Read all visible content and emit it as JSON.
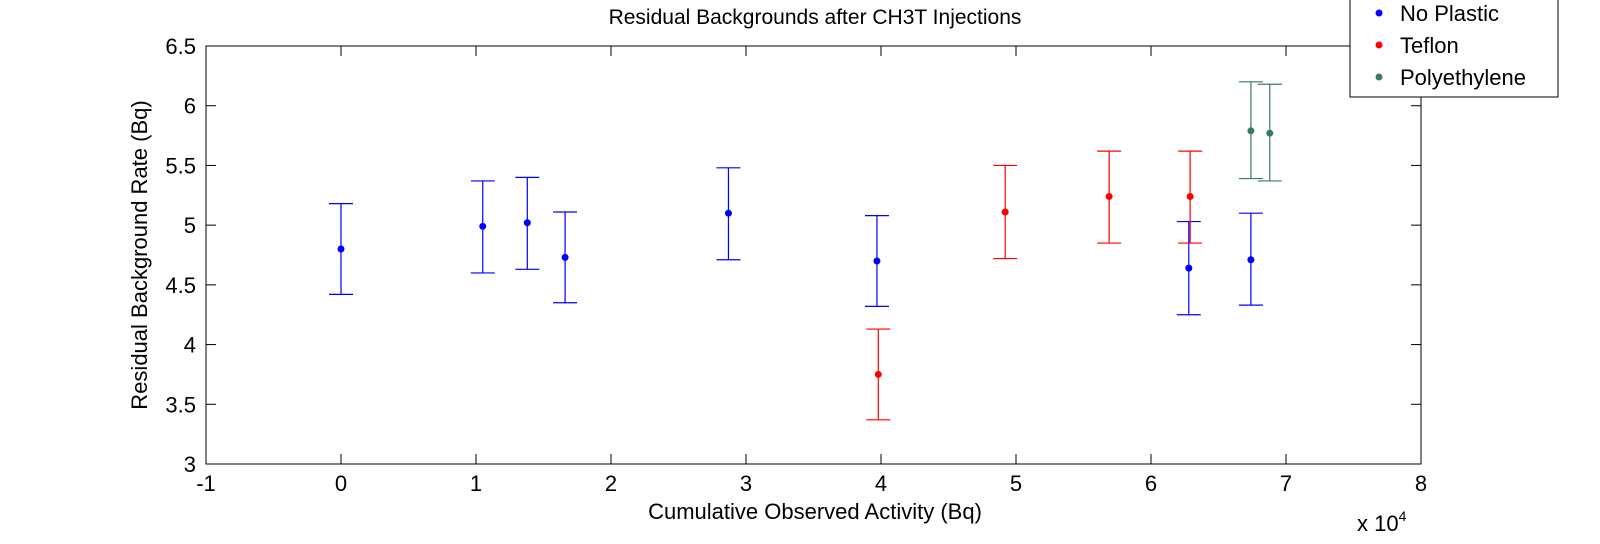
{
  "chart_data": {
    "type": "scatter",
    "title": "Residual Backgrounds after CH3T Injections",
    "xlabel": "Cumulative Observed Activity (Bq)",
    "ylabel": "Residual Background Rate (Bq)",
    "x_multiplier_label": "x 10",
    "x_multiplier_exponent": "4",
    "x_scale": 10000,
    "xlim": [
      -1,
      8
    ],
    "ylim": [
      3,
      6.5
    ],
    "x_ticks": [
      -1,
      0,
      1,
      2,
      3,
      4,
      5,
      6,
      7,
      8
    ],
    "x_tick_labels": [
      "-1",
      "0",
      "1",
      "2",
      "3",
      "4",
      "5",
      "6",
      "7",
      "8"
    ],
    "y_ticks": [
      3,
      3.5,
      4,
      4.5,
      5,
      5.5,
      6,
      6.5
    ],
    "y_tick_labels": [
      "3",
      "3.5",
      "4",
      "4.5",
      "5",
      "5.5",
      "6",
      "6.5"
    ],
    "grid": false,
    "legend_position": "top-right",
    "series": [
      {
        "name": "No Plastic",
        "color": "#0000ff",
        "points": [
          {
            "x": 0.0,
            "y": 4.8,
            "lo": 4.42,
            "hi": 5.18
          },
          {
            "x": 1.05,
            "y": 4.99,
            "lo": 4.6,
            "hi": 5.37
          },
          {
            "x": 1.38,
            "y": 5.02,
            "lo": 4.63,
            "hi": 5.4
          },
          {
            "x": 1.66,
            "y": 4.73,
            "lo": 4.35,
            "hi": 5.11
          },
          {
            "x": 2.87,
            "y": 5.1,
            "lo": 4.71,
            "hi": 5.48
          },
          {
            "x": 3.97,
            "y": 4.7,
            "lo": 4.32,
            "hi": 5.08
          },
          {
            "x": 6.28,
            "y": 4.64,
            "lo": 4.25,
            "hi": 5.03
          },
          {
            "x": 6.74,
            "y": 4.71,
            "lo": 4.33,
            "hi": 5.1
          }
        ]
      },
      {
        "name": "Teflon",
        "color": "#ff0000",
        "points": [
          {
            "x": 3.98,
            "y": 3.75,
            "lo": 3.37,
            "hi": 4.13
          },
          {
            "x": 4.92,
            "y": 5.11,
            "lo": 4.72,
            "hi": 5.5
          },
          {
            "x": 5.69,
            "y": 5.24,
            "lo": 4.85,
            "hi": 5.62
          },
          {
            "x": 6.29,
            "y": 5.24,
            "lo": 4.85,
            "hi": 5.62
          }
        ]
      },
      {
        "name": "Polyethylene",
        "color": "#3a7a62",
        "points": [
          {
            "x": 6.74,
            "y": 5.79,
            "lo": 5.39,
            "hi": 6.2
          },
          {
            "x": 6.88,
            "y": 5.77,
            "lo": 5.37,
            "hi": 6.18
          }
        ]
      }
    ]
  }
}
